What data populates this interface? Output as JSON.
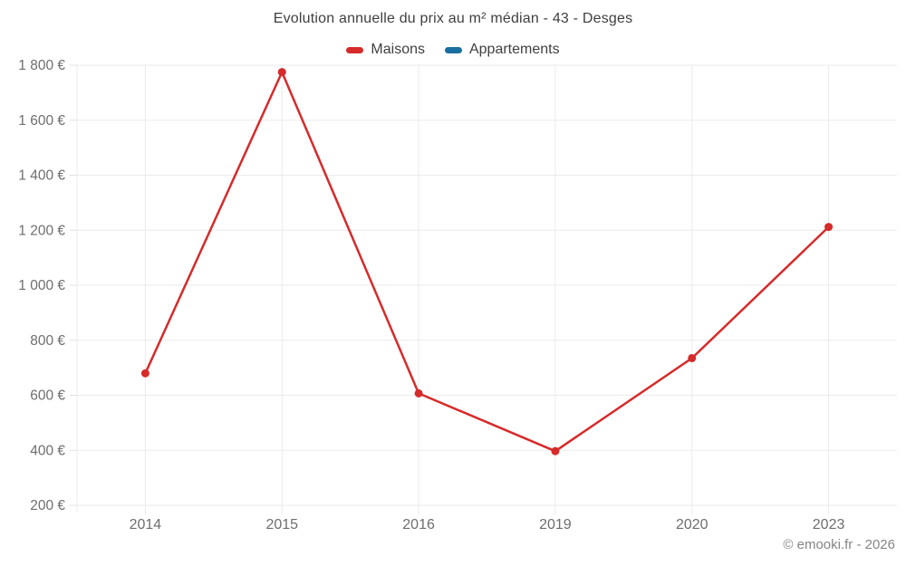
{
  "chart": {
    "title": "Evolution annuelle du prix au m² médian - 43 - Desges",
    "legend": [
      {
        "label": "Maisons",
        "color": "#d62b2b"
      },
      {
        "label": "Appartements",
        "color": "#1a6f9e"
      }
    ]
  },
  "footer": {
    "copyright": "© emooki.fr - 2026"
  },
  "chart_data": {
    "type": "line",
    "title": "Evolution annuelle du prix au m² médian - 43 - Desges",
    "categories": [
      "2014",
      "2015",
      "2016",
      "2019",
      "2020",
      "2023"
    ],
    "series": [
      {
        "name": "Maisons",
        "color": "#d62b2b",
        "values": [
          680,
          1775,
          607,
          397,
          735,
          1212
        ]
      },
      {
        "name": "Appartements",
        "color": "#1a6f9e",
        "values": []
      }
    ],
    "xlabel": "",
    "ylabel": "",
    "ylim": [
      200,
      1800
    ],
    "y_ticks": [
      "200 €",
      "400 €",
      "600 €",
      "800 €",
      "1 000 €",
      "1 200 €",
      "1 400 €",
      "1 600 €",
      "1 800 €"
    ],
    "grid": true,
    "legend_position": "top",
    "styles": {
      "grid_color": "#ebebeb",
      "tick_color": "#e0e0e0",
      "axis_label_color": "#6e6e6e",
      "title_color": "#3f3f3f",
      "footer_color": "#858585",
      "background": "#ffffff",
      "point_radius": 4.5,
      "line_width": 2.5
    }
  }
}
